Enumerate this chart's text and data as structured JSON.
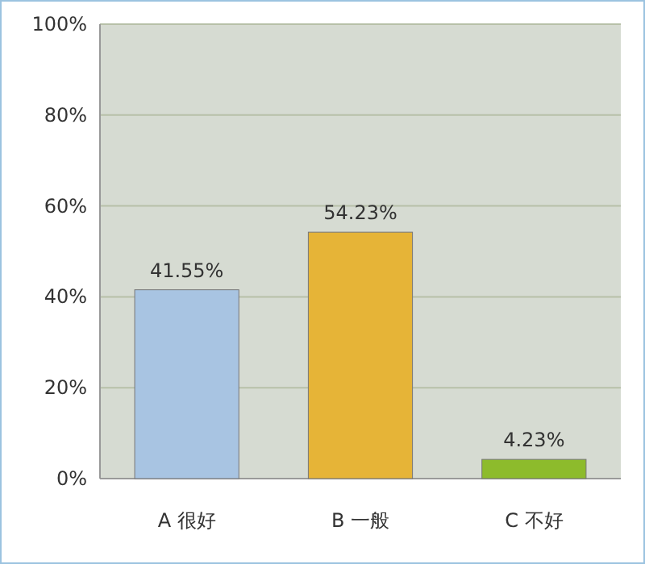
{
  "chart_data": {
    "type": "bar",
    "categories": [
      "A 很好",
      "B 一般",
      "C 不好"
    ],
    "values": [
      41.55,
      54.23,
      4.23
    ],
    "colors": [
      "#a8c4e2",
      "#e6b437",
      "#8dbb2c"
    ],
    "value_labels": [
      "41.55%",
      "54.23%",
      "4.23%"
    ],
    "ylim": [
      0,
      100
    ],
    "yticks": [
      {
        "value": 0,
        "label": "0%"
      },
      {
        "value": 20,
        "label": "20%"
      },
      {
        "value": 40,
        "label": "40%"
      },
      {
        "value": 60,
        "label": "60%"
      },
      {
        "value": 80,
        "label": "80%"
      },
      {
        "value": 100,
        "label": "100%"
      }
    ],
    "grid": "y"
  }
}
